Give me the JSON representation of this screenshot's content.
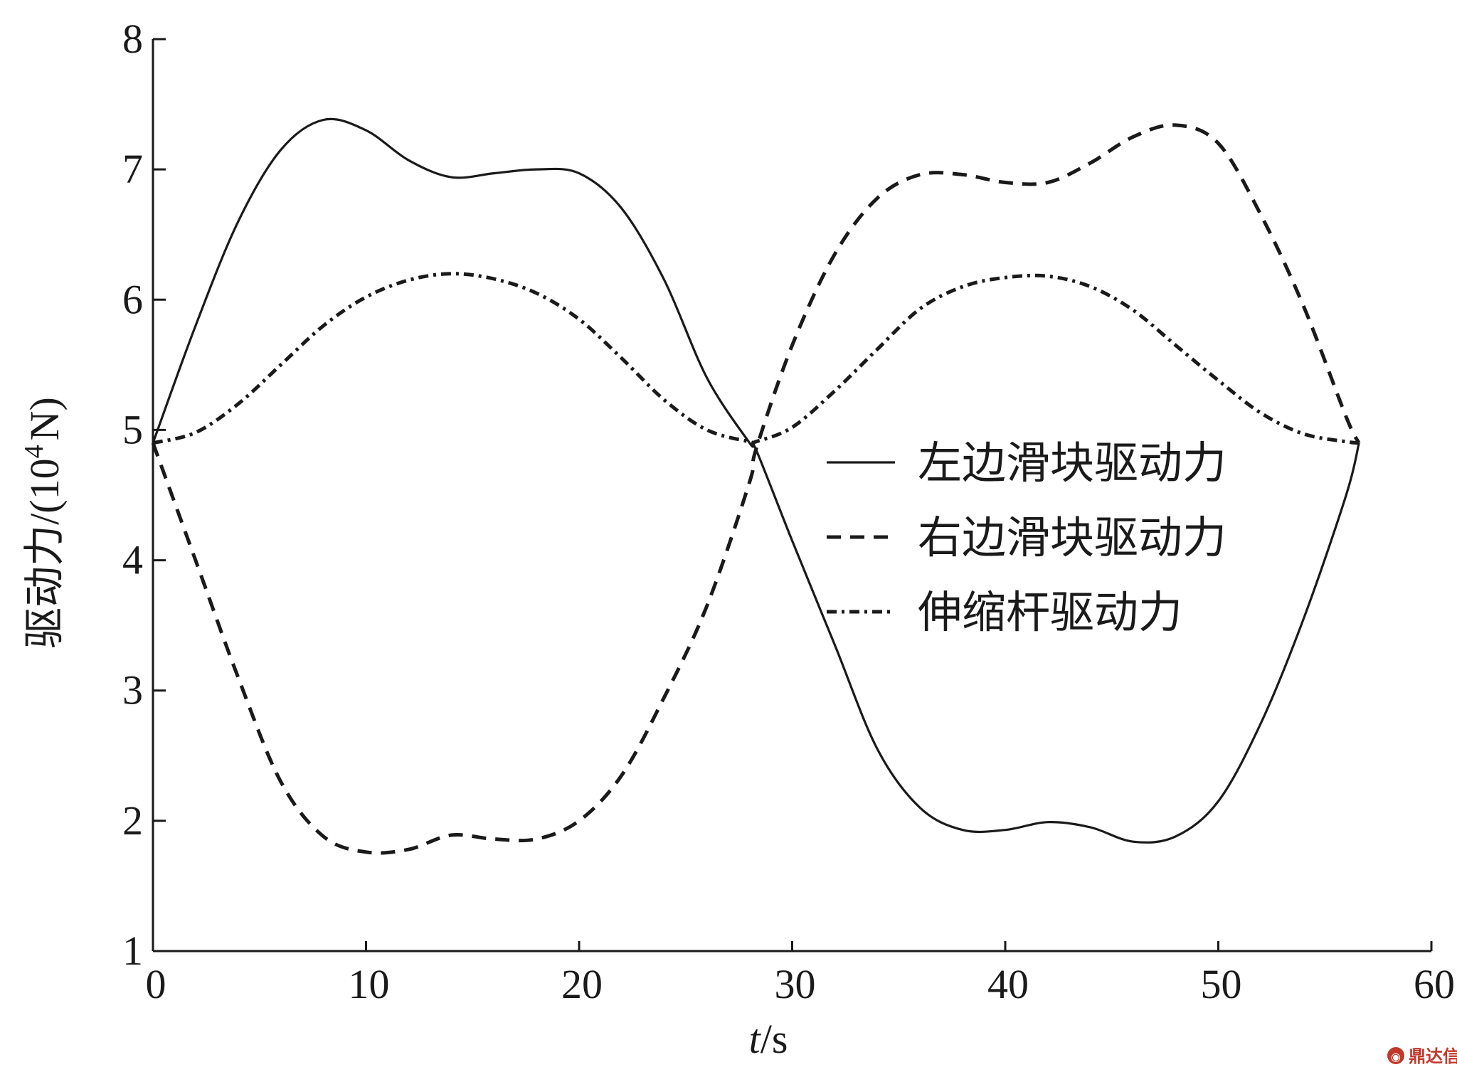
{
  "chart_data": {
    "type": "line",
    "xlabel": {
      "italic": "t",
      "rest": "/s"
    },
    "ylabel": {
      "main": "驱动力/(10",
      "sup": "4",
      "tail": "N)"
    },
    "xlim": [
      0,
      60
    ],
    "ylim": [
      1,
      8
    ],
    "xticks": [
      "0",
      "10",
      "20",
      "30",
      "40",
      "50",
      "60"
    ],
    "yticks": [
      "1",
      "2",
      "3",
      "4",
      "5",
      "6",
      "7",
      "8"
    ],
    "grid": false,
    "legend_position": "right-center",
    "series": [
      {
        "name": "左边滑块驱动力",
        "style": "solid",
        "x": [
          0,
          2,
          4,
          6,
          8,
          10,
          12,
          14,
          16,
          18,
          20,
          22,
          24,
          26,
          28,
          28.3,
          30,
          32,
          34,
          36,
          38,
          40,
          42,
          44,
          46,
          48,
          50,
          52,
          54,
          56,
          56.6
        ],
        "y": [
          4.9,
          5.8,
          6.6,
          7.15,
          7.38,
          7.3,
          7.07,
          6.94,
          6.97,
          7.0,
          6.97,
          6.7,
          6.15,
          5.4,
          4.9,
          4.85,
          4.15,
          3.35,
          2.55,
          2.1,
          1.93,
          1.93,
          1.99,
          1.95,
          1.84,
          1.88,
          2.15,
          2.75,
          3.55,
          4.5,
          4.9
        ]
      },
      {
        "name": "右边滑块驱动力",
        "style": "dashed",
        "x": [
          0,
          2,
          4,
          6,
          8,
          10,
          12,
          14,
          16,
          18,
          20,
          22,
          24,
          26,
          28,
          28.3,
          30,
          32,
          34,
          36,
          38,
          40,
          42,
          44,
          46,
          48,
          50,
          52,
          54,
          56,
          56.6
        ],
        "y": [
          4.9,
          4.0,
          3.1,
          2.3,
          1.88,
          1.76,
          1.78,
          1.89,
          1.86,
          1.86,
          2.0,
          2.35,
          2.95,
          3.65,
          4.6,
          4.85,
          5.65,
          6.35,
          6.78,
          6.96,
          6.96,
          6.9,
          6.9,
          7.05,
          7.25,
          7.34,
          7.2,
          6.65,
          5.95,
          5.1,
          4.9
        ]
      },
      {
        "name": "伸缩杆驱动力",
        "style": "dash-dot",
        "x": [
          0,
          2,
          4,
          6,
          8,
          10,
          12,
          14,
          16,
          18,
          20,
          22,
          24,
          26,
          28,
          28.3,
          30,
          32,
          34,
          36,
          38,
          40,
          42,
          44,
          46,
          48,
          50,
          52,
          54,
          56,
          56.6
        ],
        "y": [
          4.9,
          4.98,
          5.2,
          5.5,
          5.8,
          6.02,
          6.15,
          6.2,
          6.16,
          6.05,
          5.85,
          5.55,
          5.23,
          5.0,
          4.91,
          4.91,
          5.02,
          5.3,
          5.62,
          5.93,
          6.1,
          6.17,
          6.18,
          6.1,
          5.92,
          5.65,
          5.38,
          5.13,
          4.97,
          4.91,
          4.9
        ]
      }
    ]
  },
  "watermark": {
    "text": "鼎达信",
    "icon": "logo-icon"
  }
}
